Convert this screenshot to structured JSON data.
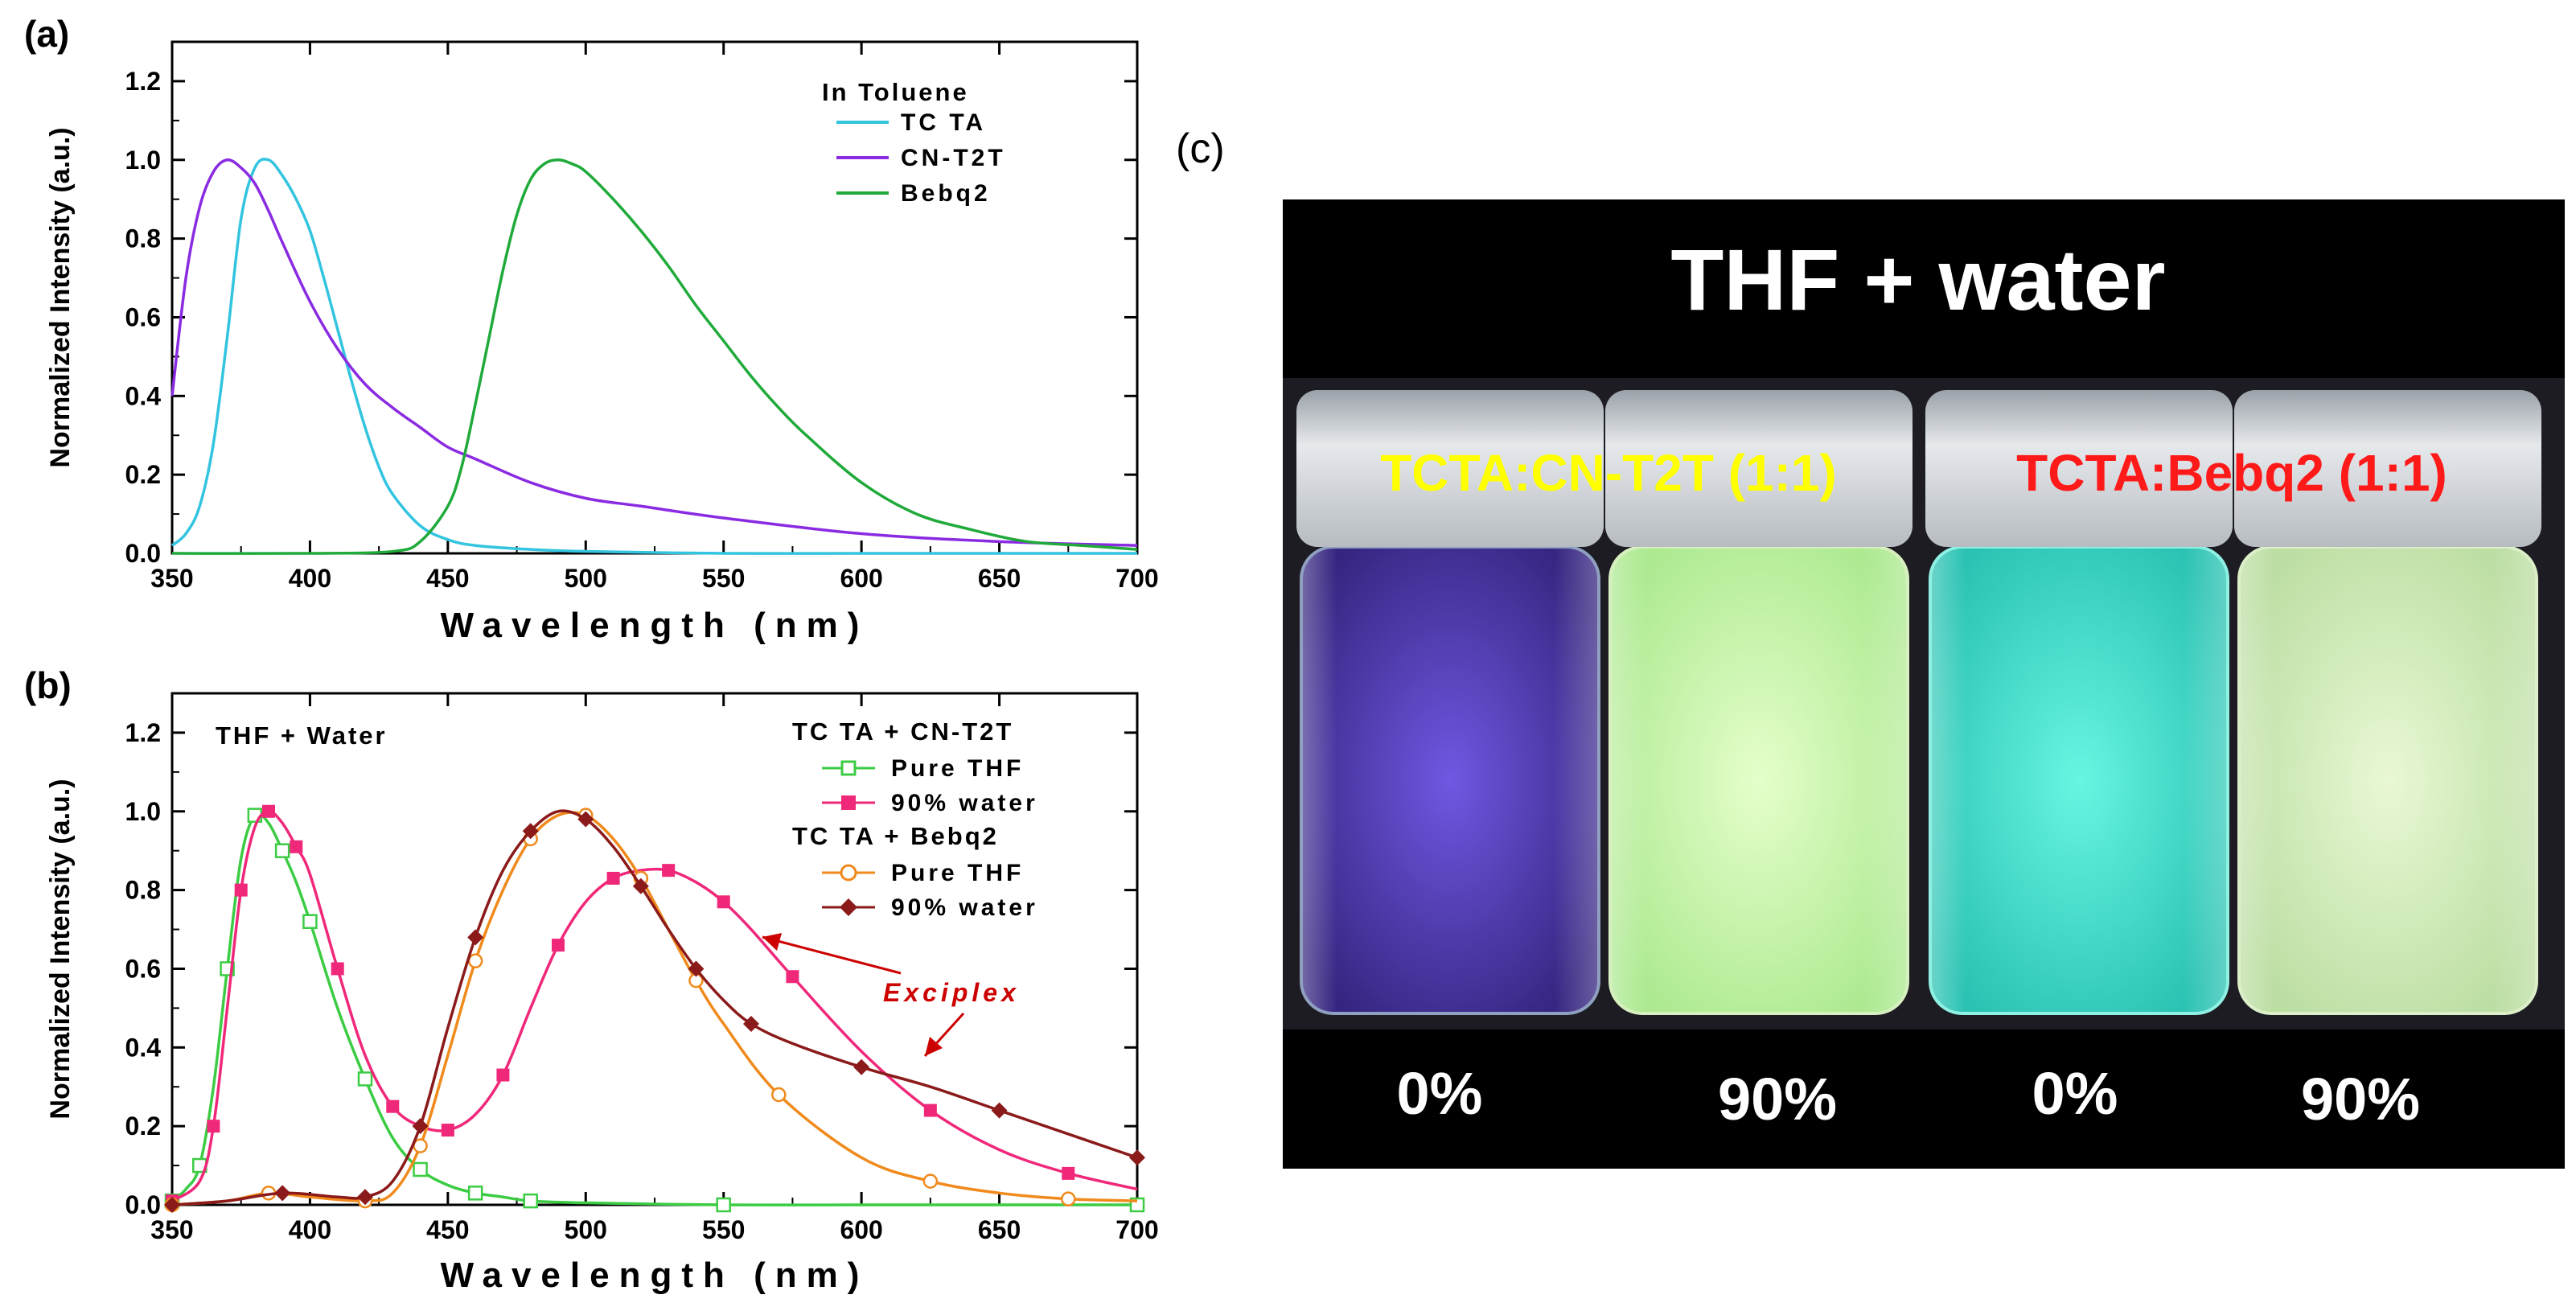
{
  "chart_data": [
    {
      "panel": "(a)",
      "type": "line",
      "title": "",
      "xlabel": "Wavelength (nm)",
      "ylabel": "Normalized Intensity (a.u.)",
      "xlim": [
        350,
        700
      ],
      "ylim": [
        0,
        1.3
      ],
      "x_ticks": [
        350,
        400,
        450,
        500,
        550,
        600,
        650,
        700
      ],
      "y_ticks": [
        0.0,
        0.2,
        0.4,
        0.6,
        0.8,
        1.0,
        1.2
      ],
      "x_tick_labels": [
        "350",
        "400",
        "450",
        "500",
        "550",
        "600",
        "650",
        "700"
      ],
      "y_tick_labels": [
        "0.0",
        "0.2",
        "0.4",
        "0.6",
        "0.8",
        "1.0",
        "1.2"
      ],
      "grid": false,
      "legend_title": "In Toluene",
      "legend_position": "top-right",
      "series": [
        {
          "name": "TC TA",
          "color": "#33c4e0",
          "marker": "none",
          "x": [
            350,
            355,
            360,
            365,
            370,
            375,
            380,
            385,
            390,
            395,
            400,
            405,
            410,
            415,
            420,
            425,
            430,
            440,
            450,
            460,
            480,
            500,
            550,
            600,
            700
          ],
          "y": [
            0.02,
            0.05,
            0.12,
            0.28,
            0.55,
            0.85,
            0.98,
            1.0,
            0.96,
            0.9,
            0.82,
            0.7,
            0.57,
            0.44,
            0.32,
            0.22,
            0.15,
            0.07,
            0.035,
            0.02,
            0.01,
            0.005,
            0,
            0,
            0
          ]
        },
        {
          "name": "CN-T2T",
          "color": "#8a2be2",
          "marker": "none",
          "x": [
            350,
            355,
            360,
            365,
            370,
            375,
            380,
            385,
            390,
            400,
            410,
            420,
            430,
            440,
            450,
            460,
            480,
            500,
            520,
            550,
            600,
            650,
            700
          ],
          "y": [
            0.4,
            0.7,
            0.88,
            0.97,
            1.0,
            0.98,
            0.94,
            0.87,
            0.79,
            0.64,
            0.52,
            0.43,
            0.37,
            0.32,
            0.27,
            0.24,
            0.18,
            0.14,
            0.12,
            0.09,
            0.05,
            0.03,
            0.02
          ]
        },
        {
          "name": "Bebq2",
          "color": "#1faa3a",
          "marker": "none",
          "x": [
            350,
            400,
            430,
            440,
            450,
            455,
            460,
            465,
            470,
            475,
            480,
            485,
            490,
            495,
            500,
            510,
            520,
            530,
            540,
            550,
            560,
            570,
            580,
            600,
            620,
            640,
            660,
            680,
            700
          ],
          "y": [
            0,
            0,
            0.005,
            0.03,
            0.12,
            0.22,
            0.38,
            0.55,
            0.72,
            0.86,
            0.95,
            0.99,
            1.0,
            0.99,
            0.97,
            0.9,
            0.82,
            0.73,
            0.63,
            0.54,
            0.45,
            0.37,
            0.3,
            0.18,
            0.1,
            0.06,
            0.03,
            0.02,
            0.01
          ]
        }
      ]
    },
    {
      "panel": "(b)",
      "type": "line",
      "title": "",
      "xlabel": "Wavelength (nm)",
      "ylabel": "Normalized Intensity (a.u.)",
      "xlim": [
        350,
        700
      ],
      "ylim": [
        0,
        1.3
      ],
      "x_ticks": [
        350,
        400,
        450,
        500,
        550,
        600,
        650,
        700
      ],
      "y_ticks": [
        0.0,
        0.2,
        0.4,
        0.6,
        0.8,
        1.0,
        1.2
      ],
      "x_tick_labels": [
        "350",
        "400",
        "450",
        "500",
        "550",
        "600",
        "650",
        "700"
      ],
      "y_tick_labels": [
        "0.0",
        "0.2",
        "0.4",
        "0.6",
        "0.8",
        "1.0",
        "1.2"
      ],
      "grid": false,
      "inset_label": "THF + Water",
      "legend_position": "top-right",
      "legend_groups": [
        {
          "title": "TC TA + CN-T2T",
          "entries": [
            0,
            1
          ]
        },
        {
          "title": "TC TA + Bebq2",
          "entries": [
            2,
            3
          ]
        }
      ],
      "series": [
        {
          "name": "Pure THF",
          "color": "#3ccc44",
          "marker": "open-square",
          "x": [
            350,
            355,
            360,
            365,
            370,
            375,
            380,
            385,
            390,
            395,
            400,
            410,
            420,
            430,
            440,
            450,
            460,
            470,
            480,
            500,
            550,
            600,
            700
          ],
          "y": [
            0.01,
            0.04,
            0.1,
            0.3,
            0.6,
            0.88,
            0.99,
            0.97,
            0.9,
            0.82,
            0.72,
            0.5,
            0.32,
            0.17,
            0.09,
            0.05,
            0.03,
            0.02,
            0.01,
            0.005,
            0,
            0,
            0
          ]
        },
        {
          "name": "90% water",
          "color": "#f0287a",
          "marker": "filled-square",
          "x": [
            350,
            360,
            365,
            370,
            375,
            380,
            385,
            390,
            395,
            400,
            410,
            420,
            430,
            440,
            450,
            460,
            470,
            480,
            490,
            500,
            510,
            520,
            530,
            540,
            550,
            560,
            575,
            600,
            625,
            650,
            675,
            700
          ],
          "y": [
            0.01,
            0.06,
            0.2,
            0.5,
            0.8,
            0.96,
            1.0,
            0.97,
            0.91,
            0.84,
            0.6,
            0.38,
            0.25,
            0.2,
            0.19,
            0.23,
            0.33,
            0.5,
            0.66,
            0.77,
            0.83,
            0.85,
            0.85,
            0.82,
            0.77,
            0.7,
            0.58,
            0.39,
            0.24,
            0.14,
            0.08,
            0.04
          ]
        },
        {
          "name": "Pure THF",
          "color": "#f08a1c",
          "marker": "open-circle",
          "x": [
            350,
            370,
            385,
            400,
            420,
            430,
            440,
            450,
            460,
            470,
            480,
            490,
            500,
            510,
            520,
            530,
            540,
            550,
            570,
            600,
            625,
            650,
            675,
            700
          ],
          "y": [
            0,
            0.01,
            0.03,
            0.02,
            0.01,
            0.03,
            0.15,
            0.38,
            0.62,
            0.8,
            0.93,
            0.99,
            0.99,
            0.93,
            0.83,
            0.7,
            0.57,
            0.46,
            0.28,
            0.12,
            0.06,
            0.03,
            0.015,
            0.01
          ]
        },
        {
          "name": "90% water",
          "color": "#8b1a1a",
          "marker": "filled-diamond",
          "x": [
            350,
            370,
            390,
            410,
            420,
            430,
            440,
            450,
            460,
            470,
            480,
            490,
            500,
            510,
            520,
            530,
            540,
            550,
            560,
            575,
            600,
            625,
            650,
            675,
            700
          ],
          "y": [
            0,
            0.01,
            0.03,
            0.02,
            0.02,
            0.06,
            0.2,
            0.45,
            0.68,
            0.85,
            0.95,
            1.0,
            0.98,
            0.91,
            0.81,
            0.7,
            0.6,
            0.52,
            0.46,
            0.41,
            0.35,
            0.3,
            0.24,
            0.18,
            0.12
          ]
        }
      ],
      "annotations": [
        {
          "text": "Exciplex",
          "color": "#cc0000"
        }
      ]
    }
  ],
  "photo": {
    "panel": "(c)",
    "title": "THF + water",
    "labels": [
      {
        "text": "TCTA:CN-T2T (1:1)",
        "color": "#ffff00"
      },
      {
        "text": "TCTA:Bebq2 (1:1)",
        "color": "#ff1a1a"
      }
    ],
    "percentages": [
      "0%",
      "90%",
      "0%",
      "90%"
    ],
    "vial_colors": [
      "#4a2fa8",
      "#c4f5a0",
      "#37e2cf",
      "#d2f0b4"
    ]
  }
}
